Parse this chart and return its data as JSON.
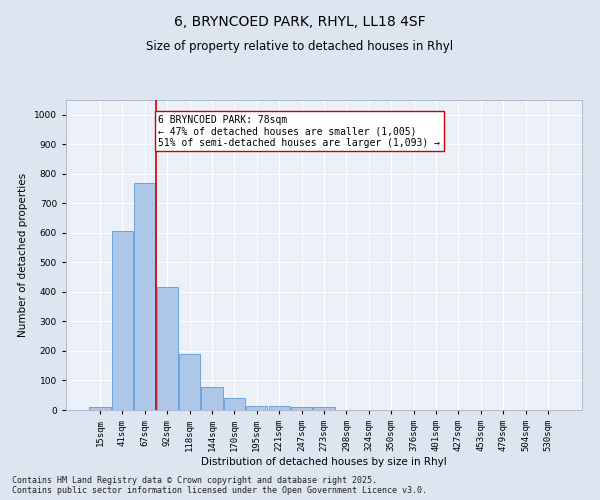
{
  "title_line1": "6, BRYNCOED PARK, RHYL, LL18 4SF",
  "title_line2": "Size of property relative to detached houses in Rhyl",
  "xlabel": "Distribution of detached houses by size in Rhyl",
  "ylabel": "Number of detached properties",
  "bar_color": "#aec6e8",
  "bar_edge_color": "#5b9bd5",
  "categories": [
    "15sqm",
    "41sqm",
    "67sqm",
    "92sqm",
    "118sqm",
    "144sqm",
    "170sqm",
    "195sqm",
    "221sqm",
    "247sqm",
    "273sqm",
    "298sqm",
    "324sqm",
    "350sqm",
    "376sqm",
    "401sqm",
    "427sqm",
    "453sqm",
    "479sqm",
    "504sqm",
    "530sqm"
  ],
  "values": [
    10,
    605,
    770,
    415,
    190,
    78,
    40,
    15,
    15,
    10,
    10,
    0,
    0,
    0,
    0,
    0,
    0,
    0,
    0,
    0,
    0
  ],
  "ylim": [
    0,
    1050
  ],
  "yticks": [
    0,
    100,
    200,
    300,
    400,
    500,
    600,
    700,
    800,
    900,
    1000
  ],
  "vline_x_index": 2,
  "vline_color": "#cc0000",
  "annotation_text": "6 BRYNCOED PARK: 78sqm\n← 47% of detached houses are smaller (1,005)\n51% of semi-detached houses are larger (1,093) →",
  "annotation_box_facecolor": "#ffffff",
  "annotation_box_edgecolor": "#cc0000",
  "fig_facecolor": "#dde5f0",
  "ax_facecolor": "#eaeff8",
  "grid_color": "#ffffff",
  "footer_line1": "Contains HM Land Registry data © Crown copyright and database right 2025.",
  "footer_line2": "Contains public sector information licensed under the Open Government Licence v3.0.",
  "title_fontsize": 10,
  "subtitle_fontsize": 8.5,
  "axis_label_fontsize": 7.5,
  "tick_fontsize": 6.5,
  "annotation_fontsize": 7,
  "footer_fontsize": 6
}
